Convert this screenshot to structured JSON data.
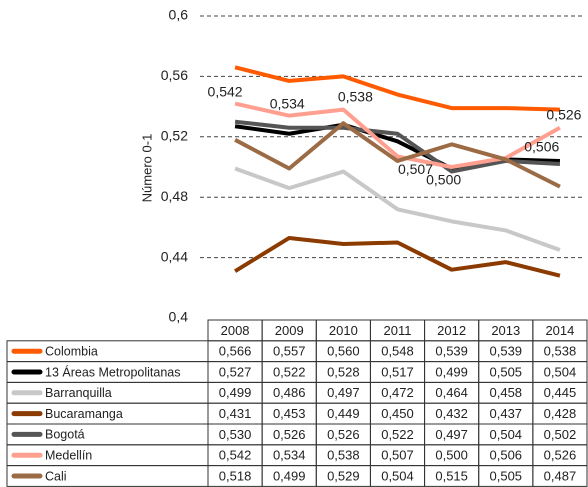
{
  "chart_data": {
    "type": "line",
    "y_label": "Número 0-1",
    "categories": [
      "2008",
      "2009",
      "2010",
      "2011",
      "2012",
      "2013",
      "2014"
    ],
    "ylim": [
      0.4,
      0.6
    ],
    "yticks": [
      {
        "value": 0.4,
        "label": "0,4"
      },
      {
        "value": 0.44,
        "label": "0,44"
      },
      {
        "value": 0.48,
        "label": "0,48"
      },
      {
        "value": 0.52,
        "label": "0,52"
      },
      {
        "value": 0.56,
        "label": "0,56"
      },
      {
        "value": 0.6,
        "label": "0,6"
      }
    ],
    "grid": true,
    "series": [
      {
        "name": "Colombia",
        "color": "#ff5a00",
        "values": [
          0.566,
          0.557,
          0.56,
          0.548,
          0.539,
          0.539,
          0.538
        ],
        "value_labels": [
          "0,566",
          "0,557",
          "0,560",
          "0,548",
          "0,539",
          "0,539",
          "0,538"
        ]
      },
      {
        "name": "13 Áreas Metropolitanas",
        "color": "#000000",
        "values": [
          0.527,
          0.522,
          0.528,
          0.517,
          0.499,
          0.505,
          0.504
        ],
        "value_labels": [
          "0,527",
          "0,522",
          "0,528",
          "0,517",
          "0,499",
          "0,505",
          "0,504"
        ]
      },
      {
        "name": "Barranquilla",
        "color": "#c8c8c8",
        "values": [
          0.499,
          0.486,
          0.497,
          0.472,
          0.464,
          0.458,
          0.445
        ],
        "value_labels": [
          "0,499",
          "0,486",
          "0,497",
          "0,472",
          "0,464",
          "0,458",
          "0,445"
        ]
      },
      {
        "name": "Bucaramanga",
        "color": "#8b3a00",
        "values": [
          0.431,
          0.453,
          0.449,
          0.45,
          0.432,
          0.437,
          0.428
        ],
        "value_labels": [
          "0,431",
          "0,453",
          "0,449",
          "0,450",
          "0,432",
          "0,437",
          "0,428"
        ]
      },
      {
        "name": "Bogotá",
        "color": "#555555",
        "values": [
          0.53,
          0.526,
          0.526,
          0.522,
          0.497,
          0.504,
          0.502
        ],
        "value_labels": [
          "0,530",
          "0,526",
          "0,526",
          "0,522",
          "0,497",
          "0,504",
          "0,502"
        ]
      },
      {
        "name": "Medellín",
        "color": "#ff9f8f",
        "values": [
          0.542,
          0.534,
          0.538,
          0.507,
          0.5,
          0.506,
          0.526
        ],
        "value_labels": [
          "0,542",
          "0,534",
          "0,538",
          "0,507",
          "0,500",
          "0,506",
          "0,526"
        ]
      },
      {
        "name": "Cali",
        "color": "#9b6b45",
        "values": [
          0.518,
          0.499,
          0.529,
          0.504,
          0.515,
          0.505,
          0.487
        ],
        "value_labels": [
          "0,518",
          "0,499",
          "0,529",
          "0,504",
          "0,515",
          "0,505",
          "0,487"
        ]
      }
    ],
    "labeled_series": 5
  }
}
